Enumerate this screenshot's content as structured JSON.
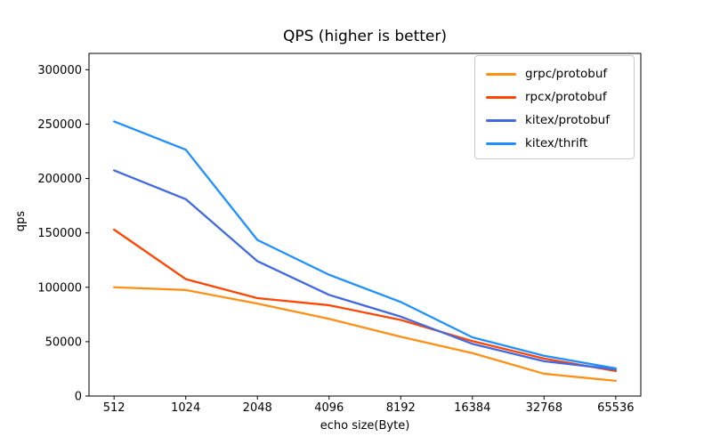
{
  "title": "QPS (higher is better)",
  "chart_data": {
    "type": "line",
    "title": "QPS (higher is better)",
    "xlabel": "echo size(Byte)",
    "ylabel": "qps",
    "categories": [
      "512",
      "1024",
      "2048",
      "4096",
      "8192",
      "16384",
      "32768",
      "65536"
    ],
    "yticks": [
      0,
      50000,
      100000,
      150000,
      200000,
      250000,
      300000
    ],
    "ylim": [
      0,
      315000
    ],
    "grid": false,
    "legend_position": "upper right",
    "axis_color": "#000000",
    "series": [
      {
        "name": "grpc/protobuf",
        "color": "#ff9015",
        "values": [
          100000,
          97500,
          85000,
          71000,
          54500,
          39500,
          20500,
          14000
        ]
      },
      {
        "name": "rpcx/protobuf",
        "color": "#ff4500",
        "values": [
          153000,
          107500,
          90000,
          83500,
          70000,
          50500,
          34500,
          23000
        ]
      },
      {
        "name": "kitex/protobuf",
        "color": "#4169e1",
        "values": [
          207500,
          181000,
          124000,
          93000,
          73000,
          48000,
          32000,
          24500
        ]
      },
      {
        "name": "kitex/thrift",
        "color": "#1e90ff",
        "values": [
          252500,
          226500,
          143500,
          111500,
          86500,
          54000,
          37000,
          25500
        ]
      }
    ]
  }
}
